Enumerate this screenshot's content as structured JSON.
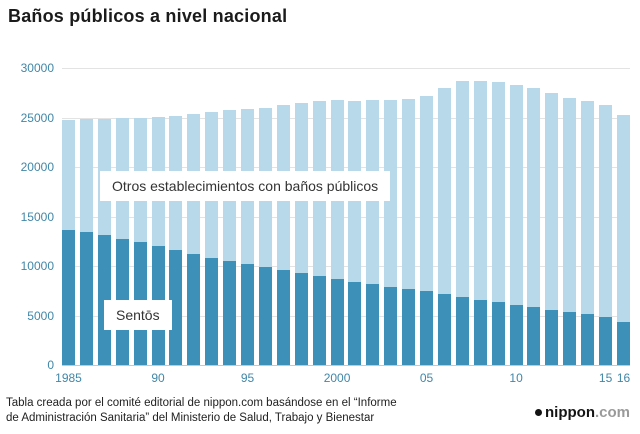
{
  "title": "Baños públicos a nivel nacional",
  "chart_data": {
    "type": "bar",
    "stacked": true,
    "title": "Baños públicos a nivel nacional",
    "xlabel": "",
    "ylabel": "",
    "ylim": [
      0,
      30000
    ],
    "yticks": [
      0,
      5000,
      10000,
      15000,
      20000,
      25000,
      30000
    ],
    "grid": true,
    "legend_position": "labels-inside-plot",
    "years": [
      1985,
      1986,
      1987,
      1988,
      1989,
      1990,
      1991,
      1992,
      1993,
      1994,
      1995,
      1996,
      1997,
      1998,
      1999,
      2000,
      2001,
      2002,
      2003,
      2004,
      2005,
      2006,
      2007,
      2008,
      2009,
      2010,
      2011,
      2012,
      2013,
      2014,
      2015,
      2016
    ],
    "xticks": [
      {
        "year": 1985,
        "label": "1985"
      },
      {
        "year": 1990,
        "label": "90"
      },
      {
        "year": 1995,
        "label": "95"
      },
      {
        "year": 2000,
        "label": "2000"
      },
      {
        "year": 2005,
        "label": "05"
      },
      {
        "year": 2010,
        "label": "10"
      },
      {
        "year": 2015,
        "label": "15"
      },
      {
        "year": 2016,
        "label": "16"
      }
    ],
    "series": [
      {
        "name": "Sentōs",
        "color": "#3d91b8",
        "values": [
          13687,
          13400,
          13100,
          12750,
          12400,
          12050,
          11650,
          11200,
          10850,
          10500,
          10200,
          9900,
          9600,
          9300,
          9000,
          8700,
          8400,
          8150,
          7900,
          7700,
          7450,
          7150,
          6900,
          6600,
          6350,
          6100,
          5850,
          5600,
          5400,
          5150,
          4900,
          4300
        ]
      },
      {
        "name": "Otros establecimientos con baños públicos",
        "color": "#b7d9ea",
        "values": [
          11100,
          11450,
          11800,
          12200,
          12600,
          13000,
          13550,
          14200,
          14750,
          15300,
          15700,
          16100,
          16700,
          17200,
          17700,
          18100,
          18300,
          18600,
          18900,
          19200,
          19750,
          20850,
          21800,
          22100,
          22200,
          22200,
          22150,
          21900,
          21600,
          21550,
          21400,
          21000
        ]
      }
    ]
  },
  "annotations": {
    "others_label": "Otros establecimientos con baños públicos",
    "sento_label": "Sentōs"
  },
  "footer": {
    "line1": "Tabla creada por el comité editorial de nippon.com basándose en el “Informe",
    "line2": "de Administración Sanitaria” del Ministerio de Salud, Trabajo y Bienestar"
  },
  "logo": {
    "name": "nippon",
    "tld": ".com"
  },
  "colors": {
    "sento": "#3d91b8",
    "others": "#b7d9ea",
    "axis_label": "#4187a8",
    "gridline": "#e3e3e3",
    "title_text": "#1b1b1b",
    "footer_text": "#222222"
  }
}
